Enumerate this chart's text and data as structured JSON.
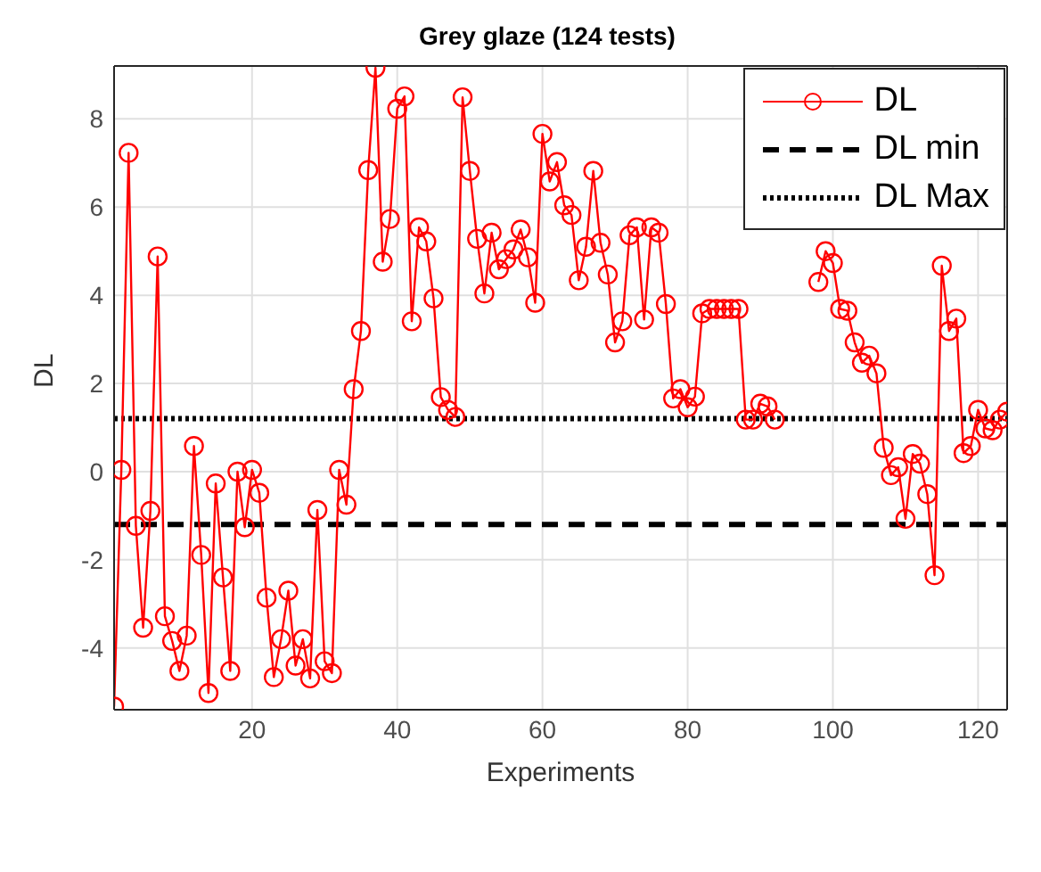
{
  "chart_data": {
    "type": "line",
    "title": "Grey glaze (124 tests)",
    "xlabel": "Experiments",
    "ylabel": "DL",
    "x": [
      1,
      2,
      3,
      4,
      5,
      6,
      7,
      8,
      9,
      10,
      11,
      12,
      13,
      14,
      15,
      16,
      17,
      18,
      19,
      20,
      21,
      22,
      23,
      24,
      25,
      26,
      27,
      28,
      29,
      30,
      31,
      32,
      33,
      34,
      35,
      36,
      37,
      38,
      39,
      40,
      41,
      42,
      43,
      44,
      45,
      46,
      47,
      48,
      49,
      50,
      51,
      52,
      53,
      54,
      55,
      56,
      57,
      58,
      59,
      60,
      61,
      62,
      63,
      64,
      65,
      66,
      67,
      68,
      69,
      70,
      71,
      72,
      73,
      74,
      75,
      76,
      77,
      78,
      79,
      80,
      81,
      82,
      83,
      84,
      85,
      86,
      87,
      88,
      89,
      90,
      91,
      92,
      93,
      94,
      95,
      96,
      97,
      98,
      99,
      100,
      101,
      102,
      103,
      104,
      105,
      106,
      107,
      108,
      109,
      110,
      111,
      112,
      113,
      114,
      115,
      116,
      117,
      118,
      119,
      120,
      121,
      122,
      123,
      124
    ],
    "series": [
      {
        "name": "DL",
        "color": "#ff0000",
        "marker": "circle",
        "line_style": "solid",
        "values": [
          -5.33,
          0.04,
          7.23,
          -1.23,
          -3.54,
          -0.89,
          4.88,
          -3.28,
          -3.84,
          -4.52,
          -3.72,
          0.58,
          -1.89,
          -5.02,
          -0.27,
          -2.4,
          -4.52,
          0,
          -1.26,
          0.04,
          -0.48,
          -2.86,
          -4.66,
          -3.8,
          -2.7,
          -4.4,
          -3.8,
          -4.69,
          -0.87,
          -4.3,
          -4.57,
          0.04,
          -0.75,
          1.87,
          3.19,
          6.84,
          9.16,
          4.76,
          5.73,
          8.23,
          8.51,
          3.41,
          5.54,
          5.22,
          3.93,
          1.69,
          1.4,
          1.24,
          8.49,
          6.82,
          5.28,
          4.04,
          5.42,
          4.59,
          4.82,
          5.04,
          5.49,
          4.86,
          3.83,
          7.66,
          6.58,
          7.02,
          6.04,
          5.82,
          4.34,
          5.1,
          6.82,
          5.19,
          4.47,
          2.93,
          3.41,
          5.36,
          5.54,
          3.45,
          5.54,
          5.42,
          3.8,
          1.66,
          1.87,
          1.46,
          1.7,
          3.59,
          3.69,
          3.69,
          3.69,
          3.69,
          3.69,
          1.18,
          1.18,
          1.54,
          1.48,
          1.18,
          null,
          null,
          null,
          null,
          null,
          4.3,
          5.0,
          4.73,
          3.69,
          3.65,
          2.93,
          2.47,
          2.63,
          2.23,
          0.54,
          -0.08,
          0.1,
          -1.07,
          0.4,
          0.18,
          -0.51,
          -2.35,
          4.67,
          3.19,
          3.47,
          0.42,
          0.58,
          1.4,
          0.98,
          0.94,
          1.18,
          1.36
        ]
      }
    ],
    "ref_lines": [
      {
        "axis": "y",
        "value": -1.2,
        "label": "DL min",
        "color": "#000000",
        "line_style": "dashed"
      },
      {
        "axis": "y",
        "value": 1.2,
        "label": "DL Max",
        "color": "#000000",
        "line_style": "dotted"
      }
    ],
    "xlim": [
      1,
      124
    ],
    "xticks": [
      20,
      40,
      60,
      80,
      100,
      120
    ],
    "ylim": [
      -5.4,
      9.2
    ],
    "yticks": [
      -4,
      -2,
      0,
      2,
      4,
      6,
      8
    ],
    "grid": true,
    "legend": "top right"
  }
}
